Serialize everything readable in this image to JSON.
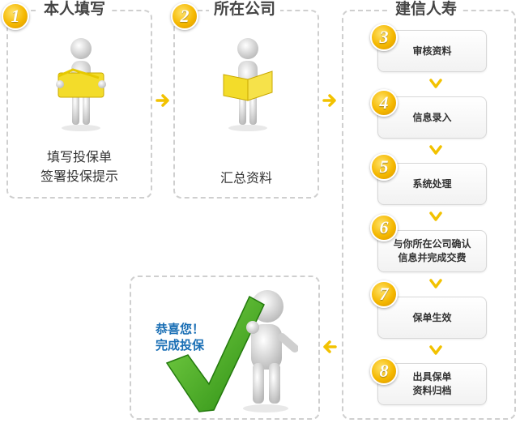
{
  "panel1": {
    "number": "1",
    "title": "本人填写",
    "line1": "填写投保单",
    "line2": "签署投保提示"
  },
  "panel2": {
    "number": "2",
    "title": "所在公司",
    "line1": "汇总资料"
  },
  "panel3": {
    "title": "建信人寿"
  },
  "steps": [
    {
      "number": "3",
      "lines": [
        "审核资料"
      ]
    },
    {
      "number": "4",
      "lines": [
        "信息录入"
      ]
    },
    {
      "number": "5",
      "lines": [
        "系统处理"
      ]
    },
    {
      "number": "6",
      "lines": [
        "与你所在公司确认",
        "信息并完成交费"
      ]
    },
    {
      "number": "7",
      "lines": [
        "保单生效"
      ]
    },
    {
      "number": "8",
      "lines": [
        "出具保单",
        "资料归档"
      ]
    }
  ],
  "finale": {
    "line1": "恭喜您！",
    "line2": "完成投保"
  },
  "colors": {
    "arrow": "#f2c200",
    "badge": "#f5b800",
    "check": "#3aa31c",
    "folder": "#f3dc2a",
    "congrats": "#1a6fb5"
  }
}
